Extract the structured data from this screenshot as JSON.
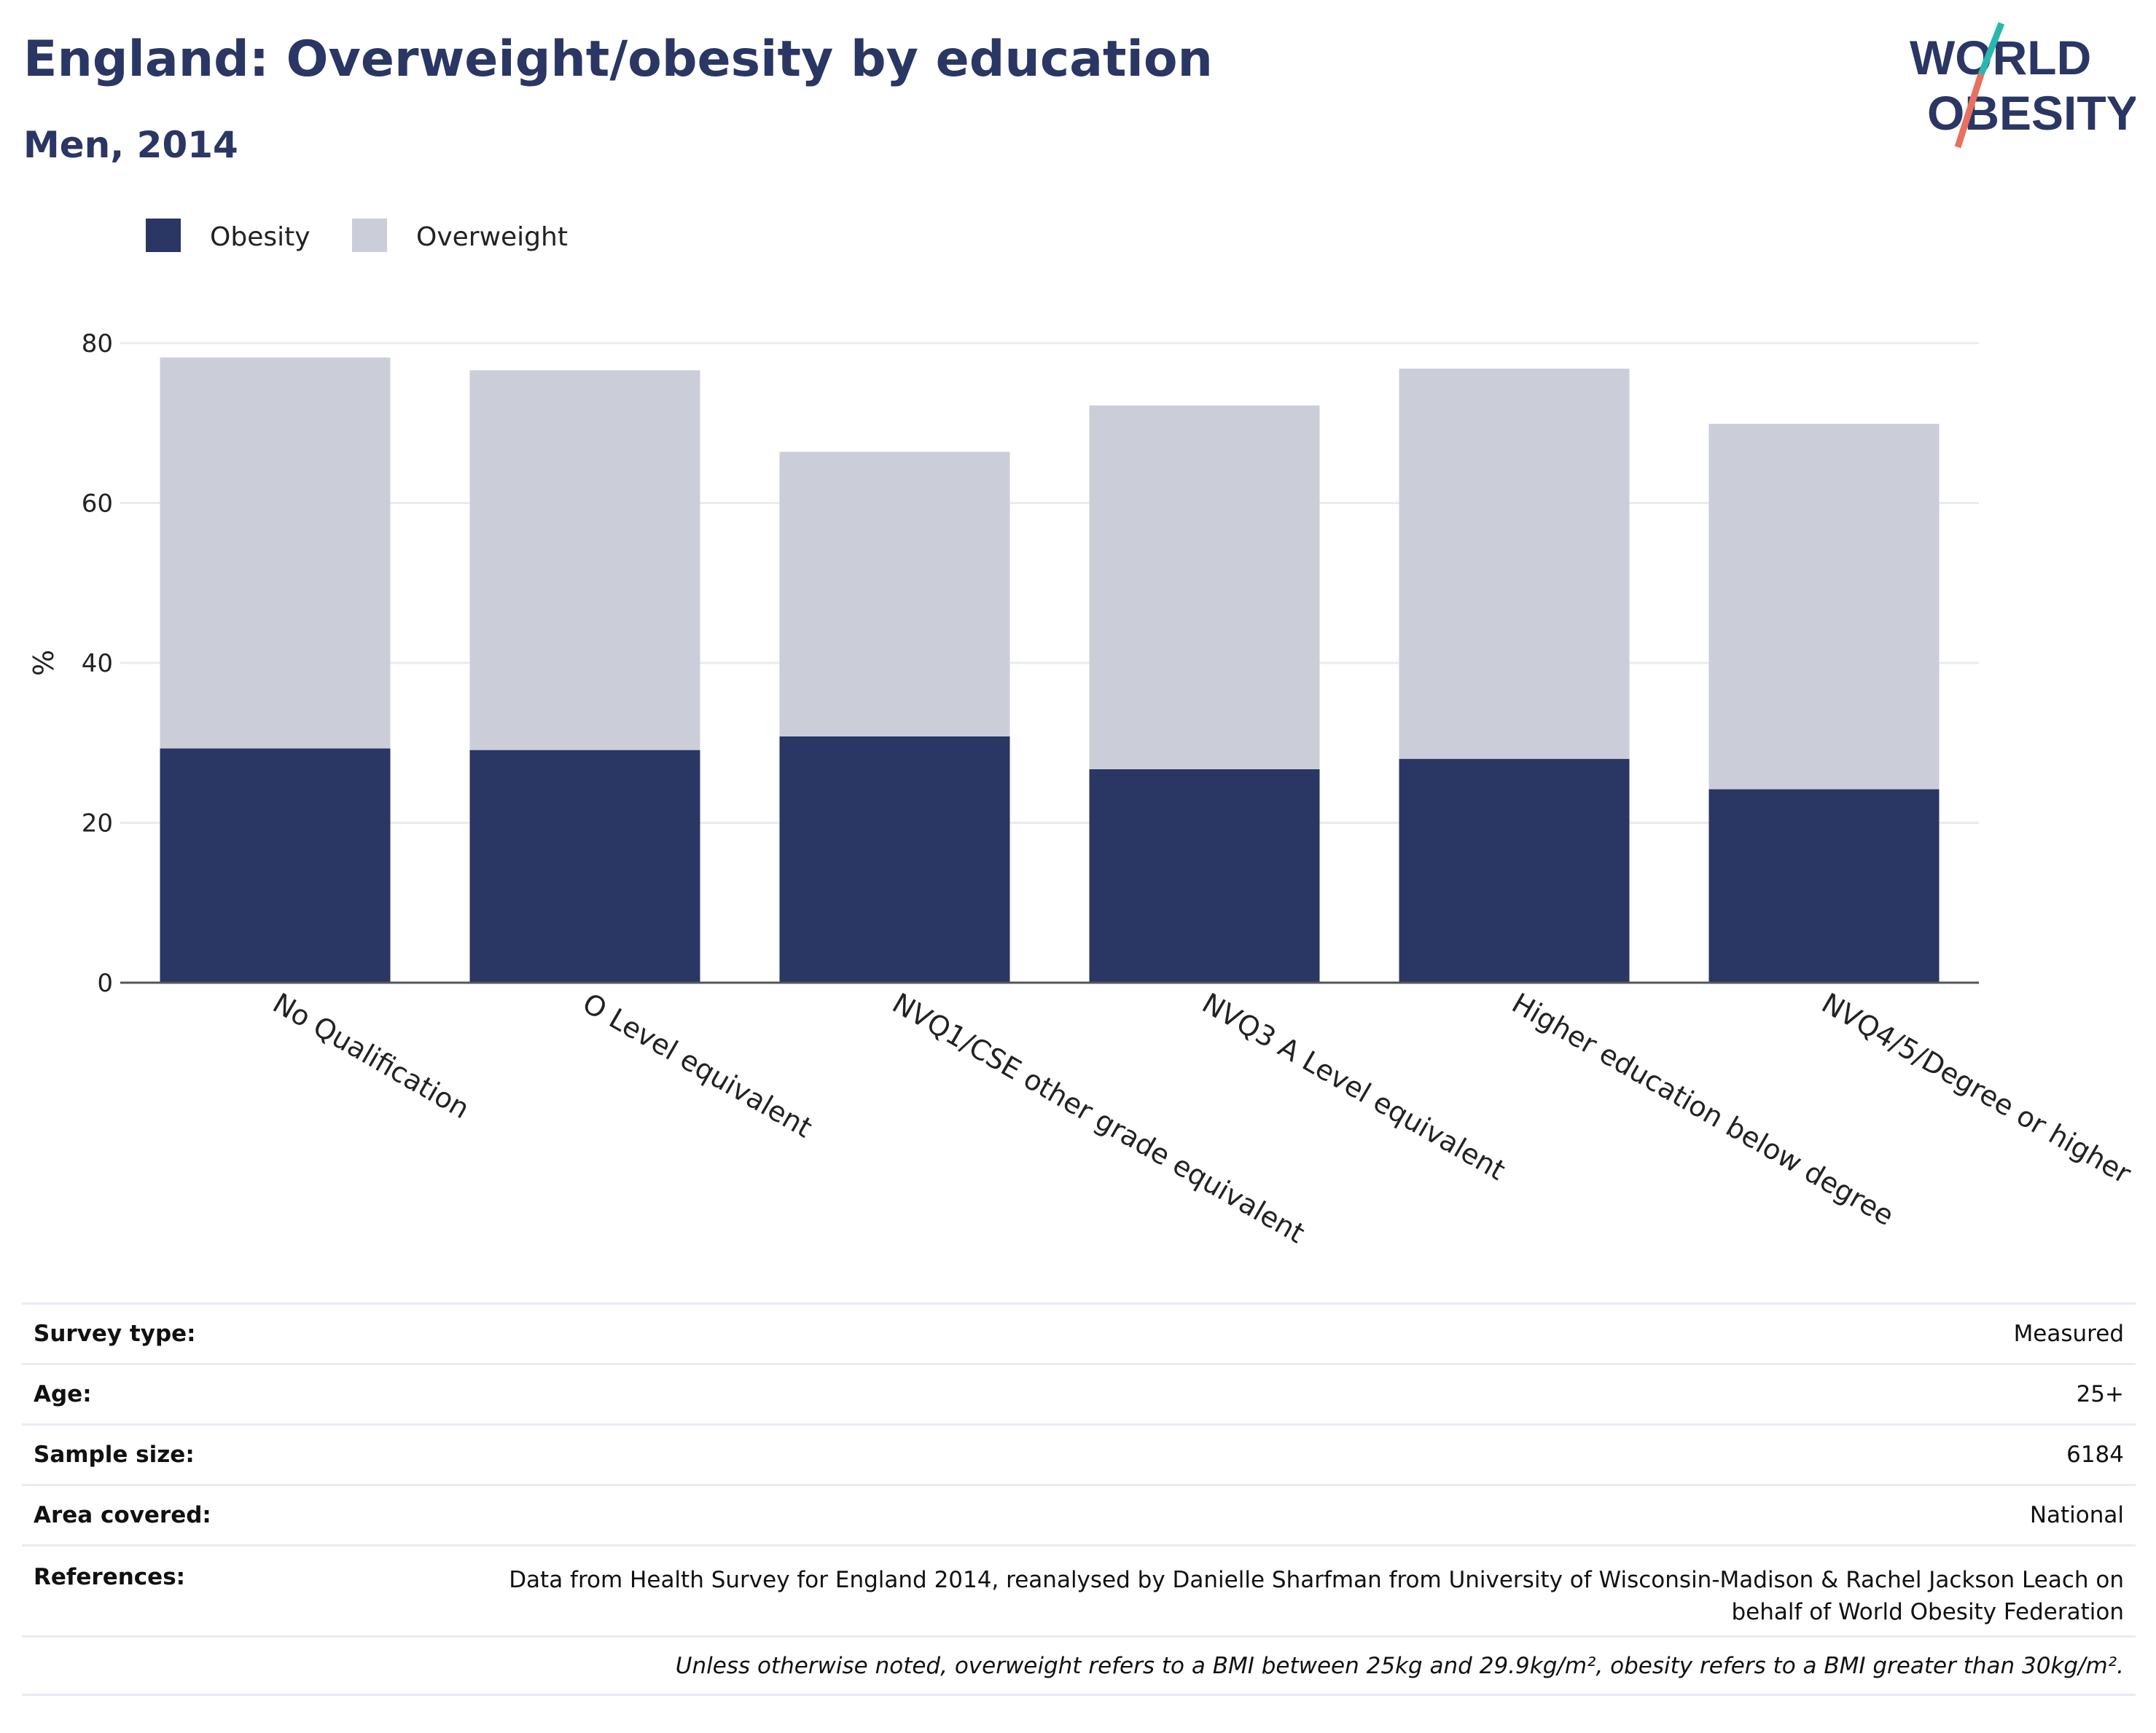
{
  "header": {
    "title": "England: Overweight/obesity by education",
    "subtitle": "Men, 2014",
    "logo_line1": "WORLD",
    "logo_line2": "OBESITY"
  },
  "colors": {
    "obesity": "#2a3663",
    "overweight": "#cbcdd9",
    "title": "#2a3663",
    "logo_teal": "#2ab7b0",
    "logo_coral": "#e8705f",
    "grid": "#e9ebf3"
  },
  "chart_data": {
    "type": "bar",
    "stacked": true,
    "title": "England: Overweight/obesity by education",
    "subtitle": "Men, 2014",
    "xlabel": "",
    "ylabel": "%",
    "ylim": [
      0,
      80
    ],
    "yticks": [
      0,
      20,
      40,
      60,
      80
    ],
    "grid": true,
    "legend_position": "top-left",
    "categories": [
      "No Qualification",
      "O Level equivalent",
      "NVQ1/CSE other grade equivalent",
      "NVQ3 A Level equivalent",
      "Higher education below degree",
      "NVQ4/5/Degree or higher"
    ],
    "series": [
      {
        "name": "Obesity",
        "values": [
          29.3,
          29.1,
          30.8,
          26.7,
          28.0,
          24.2
        ]
      },
      {
        "name": "Overweight",
        "values": [
          48.9,
          47.5,
          35.6,
          45.5,
          48.8,
          45.7
        ]
      }
    ]
  },
  "info": {
    "survey_type": {
      "label": "Survey type:",
      "value": "Measured"
    },
    "age": {
      "label": "Age:",
      "value": "25+"
    },
    "sample_size": {
      "label": "Sample size:",
      "value": "6184"
    },
    "area_covered": {
      "label": "Area covered:",
      "value": "National"
    },
    "references": {
      "label": "References:",
      "value": "Data from Health Survey for England 2014, reanalysed by Danielle Sharfman from University of Wisconsin-Madison & Rachel Jackson Leach on behalf of World Obesity Federation"
    },
    "note": "Unless otherwise noted, overweight refers to a BMI between 25kg and 29.9kg/m², obesity refers to a BMI greater than 30kg/m²."
  }
}
